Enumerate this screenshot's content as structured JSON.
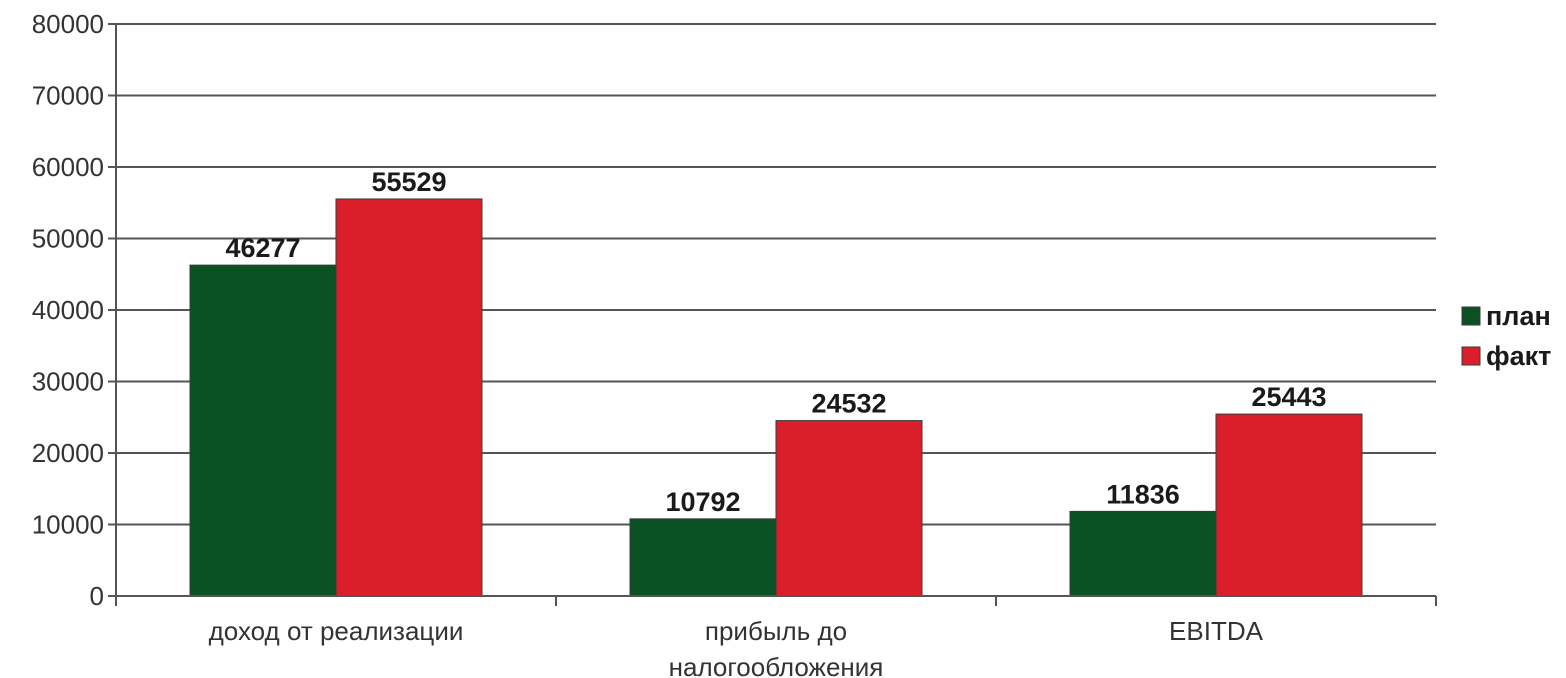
{
  "chart_data": {
    "type": "bar",
    "categories": [
      [
        "доход от реализации"
      ],
      [
        "прибыль до",
        "налогообложения"
      ],
      [
        "EBITDA"
      ]
    ],
    "series": [
      {
        "name": "план",
        "color": "#0a5224",
        "values": [
          46277,
          10792,
          11836
        ]
      },
      {
        "name": "факт",
        "color": "#da1f2a",
        "values": [
          55529,
          24532,
          25443
        ]
      }
    ],
    "ylim": [
      0,
      80000
    ],
    "yticks": [
      0,
      10000,
      20000,
      30000,
      40000,
      50000,
      60000,
      70000,
      80000
    ],
    "grid": true,
    "legend": "right",
    "data_labels": true
  }
}
